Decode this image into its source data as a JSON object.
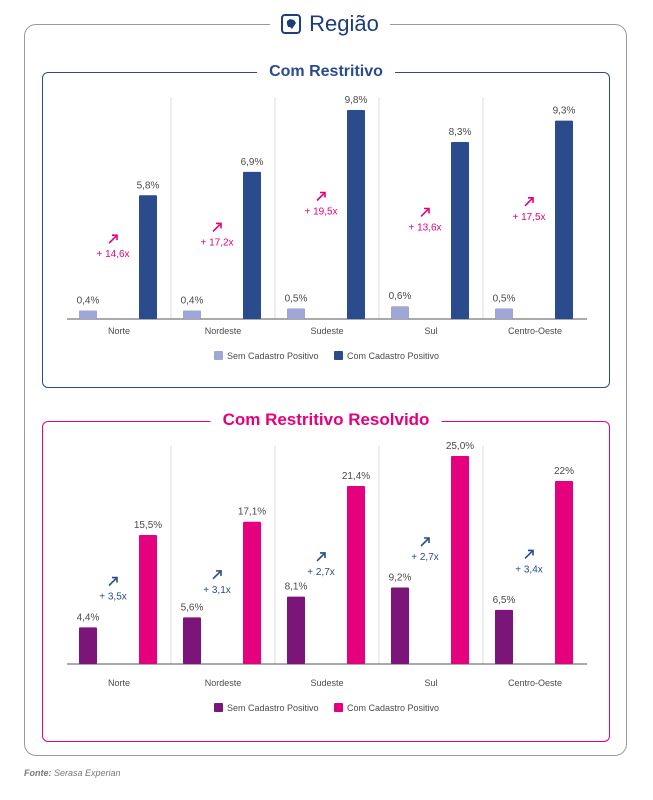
{
  "page": {
    "title": "Região",
    "icon": "brazil-map-icon",
    "source_label": "Fonte:",
    "source": "Serasa Experian"
  },
  "colors": {
    "navy": "#2a4b8c",
    "lavender": "#9ea7d6",
    "magenta": "#e5007e",
    "purple": "#7b1579",
    "grey_text": "#4a4a4a",
    "border_grey": "#9a9a9a"
  },
  "panels": [
    {
      "title": "Com Restritivo",
      "color": "#2a4b8c"
    },
    {
      "title": "Com Restritivo Resolvido",
      "color": "#e5007e"
    }
  ],
  "chart_data": [
    {
      "type": "bar",
      "title": "Com Restritivo",
      "categories": [
        "Norte",
        "Nordeste",
        "Sudeste",
        "Sul",
        "Centro-Oeste"
      ],
      "series": [
        {
          "name": "Sem Cadastro Positivo",
          "color": "#9ea7d6",
          "values": [
            0.4,
            0.4,
            0.5,
            0.6,
            0.5
          ],
          "labels": [
            "0,4%",
            "0,4%",
            "0,5%",
            "0,6%",
            "0,5%"
          ]
        },
        {
          "name": "Com Cadastro Positivo",
          "color": "#2a4b8c",
          "values": [
            5.8,
            6.9,
            9.8,
            8.3,
            9.3
          ],
          "labels": [
            "5,8%",
            "6,9%",
            "9,8%",
            "8,3%",
            "9,3%"
          ]
        }
      ],
      "multipliers": [
        "+ 14,6x",
        "+ 17,2x",
        "+ 19,5x",
        "+ 13,6x",
        "+ 17,5x"
      ],
      "multiplier_color": "#e5007e",
      "ylim": [
        0,
        9.8
      ],
      "legend": "bottom-center",
      "grid": "vertical separators"
    },
    {
      "type": "bar",
      "title": "Com Restritivo Resolvido",
      "categories": [
        "Norte",
        "Nordeste",
        "Sudeste",
        "Sul",
        "Centro-Oeste"
      ],
      "series": [
        {
          "name": "Sem Cadastro Positivo",
          "color": "#7b1579",
          "values": [
            4.4,
            5.6,
            8.1,
            9.2,
            6.5
          ],
          "labels": [
            "4,4%",
            "5,6%",
            "8,1%",
            "9,2%",
            "6,5%"
          ]
        },
        {
          "name": "Com Cadastro Positivo",
          "color": "#e5007e",
          "values": [
            15.5,
            17.1,
            21.4,
            25.0,
            22
          ],
          "labels": [
            "15,5%",
            "17,1%",
            "21,4%",
            "25,0%",
            "22%"
          ]
        }
      ],
      "multipliers": [
        "+ 3,5x",
        "+ 3,1x",
        "+ 2,7x",
        "+ 2,7x",
        "+ 3,4x"
      ],
      "multiplier_color": "#2a4b8c",
      "ylim": [
        0,
        25
      ],
      "legend": "bottom-center",
      "grid": "vertical separators"
    }
  ]
}
